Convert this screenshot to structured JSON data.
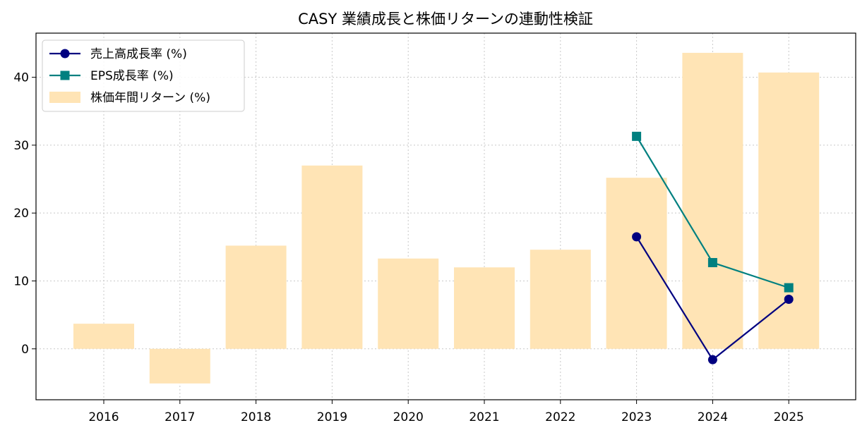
{
  "chart_data": {
    "type": "bar",
    "title": "CASY 業績成長と株価リターンの連動性検証",
    "xlabel": "",
    "ylabel": "",
    "categories": [
      "2016",
      "2017",
      "2018",
      "2019",
      "2020",
      "2021",
      "2022",
      "2023",
      "2024",
      "2025"
    ],
    "ylim": [
      -7.5,
      46.5
    ],
    "yticks": [
      0,
      10,
      20,
      30,
      40
    ],
    "grid": true,
    "legend_position": "top-left",
    "series": [
      {
        "name": "売上高成長率 (%)",
        "kind": "line",
        "marker": "circle",
        "color": "#000080",
        "values": [
          null,
          null,
          null,
          null,
          null,
          null,
          null,
          16.5,
          -1.6,
          7.3
        ]
      },
      {
        "name": "EPS成長率 (%)",
        "kind": "line",
        "marker": "square",
        "color": "#008080",
        "values": [
          null,
          null,
          null,
          null,
          null,
          null,
          null,
          31.3,
          12.7,
          9.0
        ]
      },
      {
        "name": "株価年間リターン (%)",
        "kind": "bar",
        "color": "#ffe4b5",
        "values": [
          3.7,
          -5.1,
          15.2,
          27.0,
          13.3,
          12.0,
          14.6,
          25.2,
          43.6,
          40.7
        ]
      }
    ]
  }
}
